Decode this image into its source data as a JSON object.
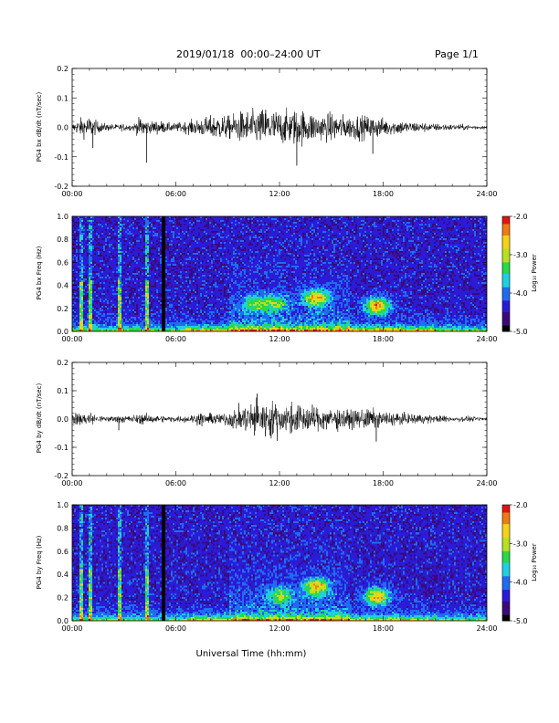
{
  "header": {
    "title": "2019/01/18  00:00–24:00 UT",
    "page": "Page 1/1"
  },
  "x_axis": {
    "label": "Universal Time (hh:mm)",
    "ticks": [
      "00:00",
      "06:00",
      "12:00",
      "18:00",
      "24:00"
    ]
  },
  "colors": {
    "waveform": "#000000",
    "colormap": [
      "#000000",
      "#3a0a7a",
      "#2b1bd6",
      "#1f6cf0",
      "#1fd0e0",
      "#2ad84a",
      "#b8e020",
      "#f5d21a",
      "#f07a14",
      "#e01414"
    ]
  },
  "chart_data": [
    {
      "type": "line",
      "id": "bx-waveform",
      "ylabel": "PG4 bx dB/dt (nT/sec)",
      "xlim_hours": [
        0,
        24
      ],
      "ylim": [
        -0.2,
        0.2
      ],
      "yticks": [
        "0.2",
        "0.1",
        "0.0",
        "-0.1",
        "-0.2"
      ],
      "amplitude_envelope": {
        "x_hours": [
          0,
          0.5,
          1,
          1.5,
          2,
          2.5,
          3,
          3.5,
          4,
          4.5,
          5,
          5.5,
          6,
          6.5,
          7,
          7.5,
          8,
          8.5,
          9,
          9.5,
          10,
          10.5,
          11,
          11.5,
          12,
          12.5,
          13,
          13.5,
          14,
          14.5,
          15,
          15.5,
          16,
          16.5,
          17,
          17.5,
          18,
          18.5,
          19,
          19.5,
          20,
          20.5,
          21,
          21.5,
          22,
          22.5,
          23,
          23.5,
          24
        ],
        "amplitude": [
          0.01,
          0.025,
          0.03,
          0.015,
          0.01,
          0.008,
          0.01,
          0.008,
          0.03,
          0.015,
          0.02,
          0.012,
          0.012,
          0.015,
          0.02,
          0.025,
          0.03,
          0.035,
          0.03,
          0.04,
          0.045,
          0.045,
          0.05,
          0.05,
          0.045,
          0.045,
          0.05,
          0.045,
          0.04,
          0.035,
          0.04,
          0.035,
          0.03,
          0.035,
          0.03,
          0.03,
          0.025,
          0.02,
          0.02,
          0.015,
          0.015,
          0.012,
          0.01,
          0.01,
          0.008,
          0.008,
          0.007,
          0.006,
          0.005
        ]
      },
      "spikes": [
        {
          "x_hours": 1.2,
          "y": -0.07
        },
        {
          "x_hours": 4.3,
          "y": -0.12
        },
        {
          "x_hours": 13.0,
          "y": -0.13
        },
        {
          "x_hours": 17.4,
          "y": -0.09
        },
        {
          "x_hours": 11.2,
          "y": 0.06
        }
      ]
    },
    {
      "type": "heatmap",
      "id": "bx-spectrogram",
      "ylabel": "PG4 bx Freq (Hz)",
      "xlim_hours": [
        0,
        24
      ],
      "ylim": [
        0,
        1.0
      ],
      "yticks": [
        "1.0",
        "0.8",
        "0.6",
        "0.4",
        "0.2",
        "0.0"
      ],
      "colorbar": {
        "label": "Log₁₀ Power",
        "range": [
          -5.0,
          -2.0
        ],
        "ticks": [
          "-2.0",
          "-3.0",
          "-4.0",
          "-5.0"
        ]
      },
      "features": {
        "data_gap_hours": [
          5.1,
          5.3
        ],
        "vertical_streaks_hours": [
          0.5,
          1.0,
          2.7,
          4.3
        ],
        "blobs": [
          {
            "x_hours": 14.1,
            "freq_hz": 0.3,
            "power": -3.0
          },
          {
            "x_hours": 17.6,
            "freq_hz": 0.23,
            "power": -2.8
          },
          {
            "x_hours": 10.5,
            "freq_hz": 0.25,
            "power": -3.8
          },
          {
            "x_hours": 11.7,
            "freq_hz": 0.25,
            "power": -3.7
          }
        ]
      }
    },
    {
      "type": "line",
      "id": "by-waveform",
      "ylabel": "PG4 by dB/dt (nT/sec)",
      "xlim_hours": [
        0,
        24
      ],
      "ylim": [
        -0.2,
        0.2
      ],
      "yticks": [
        "0.2",
        "0.1",
        "0.0",
        "-0.1",
        "-0.2"
      ],
      "amplitude_envelope": {
        "x_hours": [
          0,
          0.5,
          1,
          1.5,
          2,
          2.5,
          3,
          3.5,
          4,
          4.5,
          5,
          5.5,
          6,
          6.5,
          7,
          7.5,
          8,
          8.5,
          9,
          9.5,
          10,
          10.5,
          11,
          11.5,
          12,
          12.5,
          13,
          13.5,
          14,
          14.5,
          15,
          15.5,
          16,
          16.5,
          17,
          17.5,
          18,
          18.5,
          19,
          19.5,
          20,
          20.5,
          21,
          21.5,
          22,
          22.5,
          23,
          23.5,
          24
        ],
        "amplitude": [
          0.015,
          0.02,
          0.02,
          0.01,
          0.008,
          0.01,
          0.012,
          0.01,
          0.015,
          0.012,
          0.01,
          0.008,
          0.008,
          0.01,
          0.012,
          0.02,
          0.015,
          0.015,
          0.02,
          0.03,
          0.04,
          0.05,
          0.05,
          0.05,
          0.045,
          0.045,
          0.04,
          0.04,
          0.035,
          0.03,
          0.035,
          0.03,
          0.025,
          0.025,
          0.03,
          0.025,
          0.02,
          0.02,
          0.015,
          0.015,
          0.015,
          0.012,
          0.01,
          0.01,
          0.008,
          0.008,
          0.007,
          0.006,
          0.005
        ]
      },
      "spikes": [
        {
          "x_hours": 2.7,
          "y": -0.04
        },
        {
          "x_hours": 10.7,
          "y": 0.09
        },
        {
          "x_hours": 17.6,
          "y": -0.08
        },
        {
          "x_hours": 11.5,
          "y": -0.06
        }
      ]
    },
    {
      "type": "heatmap",
      "id": "by-spectrogram",
      "ylabel": "PG4 by Freq (Hz)",
      "xlim_hours": [
        0,
        24
      ],
      "ylim": [
        0,
        1.0
      ],
      "yticks": [
        "1.0",
        "0.8",
        "0.6",
        "0.4",
        "0.2",
        "0.0"
      ],
      "colorbar": {
        "label": "Log₁₀ Power",
        "range": [
          -5.0,
          -2.0
        ],
        "ticks": [
          "-2.0",
          "-3.0",
          "-4.0",
          "-5.0"
        ]
      },
      "features": {
        "data_gap_hours": [
          5.1,
          5.3
        ],
        "vertical_streaks_hours": [
          0.5,
          1.0,
          2.7,
          4.3
        ],
        "blobs": [
          {
            "x_hours": 14.1,
            "freq_hz": 0.3,
            "power": -3.0
          },
          {
            "x_hours": 17.6,
            "freq_hz": 0.22,
            "power": -2.9
          },
          {
            "x_hours": 12.0,
            "freq_hz": 0.22,
            "power": -3.7
          }
        ]
      }
    }
  ]
}
